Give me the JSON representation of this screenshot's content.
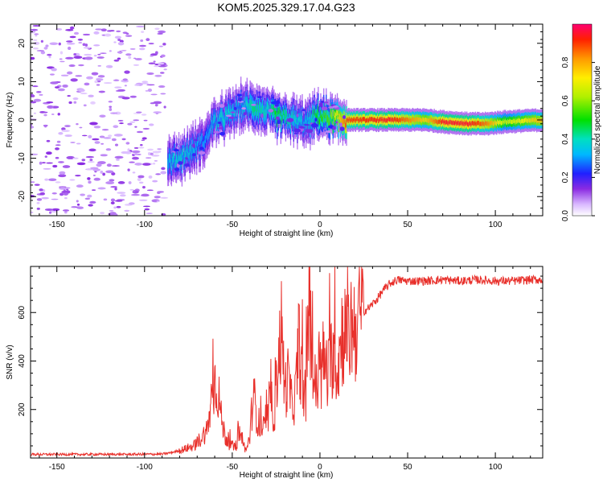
{
  "chart_data": [
    {
      "type": "heatmap",
      "title": "KOM5.2025.329.17.04.G23",
      "xlabel": "Height of straight line (km)",
      "ylabel": "Frequency (Hz)",
      "xlim": [
        -165,
        127
      ],
      "ylim": [
        -25,
        25
      ],
      "xticks": [
        -150,
        -100,
        -50,
        0,
        50,
        100
      ],
      "yticks": [
        -20,
        -10,
        0,
        10,
        20
      ],
      "xtick_labels": [
        "-150",
        "-100",
        "-50",
        "0",
        "50",
        "100"
      ],
      "ytick_labels": [
        "-20",
        "-10",
        "0",
        "10",
        "20"
      ],
      "ridge": [
        {
          "x": -87,
          "f": -11.0,
          "a": 0.35
        },
        {
          "x": -80,
          "f": -10.0,
          "a": 0.4
        },
        {
          "x": -72,
          "f": -7.5,
          "a": 0.35
        },
        {
          "x": -65,
          "f": -5.0,
          "a": 0.3
        },
        {
          "x": -62,
          "f": -1.0,
          "a": 0.35
        },
        {
          "x": -55,
          "f": 0.5,
          "a": 0.4
        },
        {
          "x": -45,
          "f": 3.5,
          "a": 0.35
        },
        {
          "x": -38,
          "f": 3.5,
          "a": 0.45
        },
        {
          "x": -30,
          "f": 2.0,
          "a": 0.4
        },
        {
          "x": -25,
          "f": 1.0,
          "a": 0.5
        },
        {
          "x": -15,
          "f": 0.0,
          "a": 0.4
        },
        {
          "x": -8,
          "f": -1.0,
          "a": 0.35
        },
        {
          "x": -2,
          "f": 1.0,
          "a": 0.5
        },
        {
          "x": 5,
          "f": 0.5,
          "a": 0.55
        },
        {
          "x": 15,
          "f": 0.0,
          "a": 0.9
        },
        {
          "x": 40,
          "f": 0.0,
          "a": 0.95
        },
        {
          "x": 60,
          "f": 0.0,
          "a": 0.75
        },
        {
          "x": 70,
          "f": -0.5,
          "a": 0.95
        },
        {
          "x": 85,
          "f": -1.0,
          "a": 0.95
        },
        {
          "x": 95,
          "f": -1.0,
          "a": 0.85
        },
        {
          "x": 105,
          "f": -0.5,
          "a": 0.65
        },
        {
          "x": 127,
          "f": 0.0,
          "a": 0.8
        }
      ],
      "colorbar": {
        "label": "Normalized spectral amplitude",
        "range": [
          0,
          1
        ],
        "ticks": [
          0.0,
          0.2,
          0.4,
          0.6,
          0.8
        ],
        "tick_labels": [
          "0.0",
          "0.2",
          "0.4",
          "0.6",
          "0.8"
        ]
      }
    },
    {
      "type": "line",
      "xlabel": "Height of straight line (km)",
      "ylabel": "SNR (v/v)",
      "xlim": [
        -165,
        127
      ],
      "ylim": [
        0,
        790
      ],
      "xticks": [
        -150,
        -100,
        -50,
        0,
        50,
        100
      ],
      "yticks": [
        200,
        400,
        600
      ],
      "xtick_labels": [
        "-150",
        "-100",
        "-50",
        "0",
        "50",
        "100"
      ],
      "ytick_labels": [
        "200",
        "400",
        "600"
      ],
      "series": [
        {
          "name": "SNR",
          "color": "#e8302b",
          "x": [
            -165,
            -140,
            -110,
            -90,
            -85,
            -78,
            -72,
            -68,
            -64,
            -62,
            -60,
            -58,
            -56,
            -54,
            -52,
            -50,
            -48,
            -46,
            -44,
            -42,
            -40,
            -38,
            -36,
            -34,
            -32,
            -30,
            -28,
            -26,
            -24,
            -22,
            -20,
            -18,
            -16,
            -14,
            -12,
            -10,
            -8,
            -6,
            -4,
            -2,
            0,
            2,
            4,
            6,
            8,
            10,
            12,
            14,
            16,
            18,
            20,
            24,
            28,
            32,
            36,
            40,
            44,
            50,
            60,
            70,
            80,
            90,
            100,
            110,
            120,
            127
          ],
          "y": [
            15,
            15,
            15,
            16,
            22,
            35,
            50,
            80,
            120,
            240,
            320,
            280,
            150,
            90,
            60,
            50,
            40,
            110,
            60,
            30,
            90,
            270,
            170,
            130,
            120,
            150,
            240,
            170,
            400,
            520,
            280,
            330,
            210,
            260,
            480,
            300,
            240,
            660,
            330,
            290,
            280,
            420,
            310,
            400,
            460,
            350,
            500,
            530,
            460,
            560,
            540,
            600,
            620,
            650,
            690,
            720,
            735,
            730,
            730,
            735,
            730,
            735,
            730,
            730,
            735,
            735
          ]
        }
      ]
    }
  ]
}
